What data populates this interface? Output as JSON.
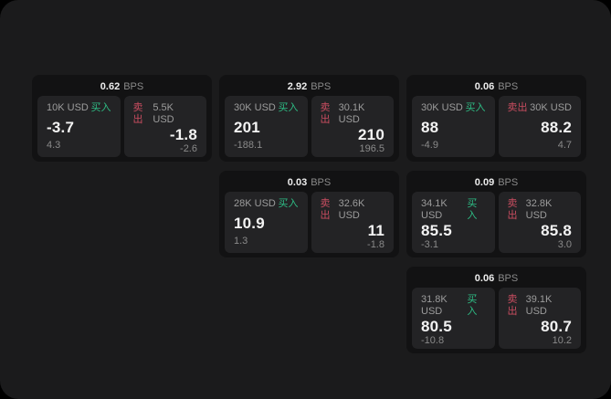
{
  "labels": {
    "buy": "买入",
    "sell": "卖出",
    "bps_unit": "BPS"
  },
  "colors": {
    "buy": "#2ebd85",
    "sell": "#c94d60",
    "panel_bg": "#1b1b1c",
    "card_bg": "#121213",
    "tile_bg": "#232325"
  },
  "cards": [
    {
      "row": 1,
      "col": 1,
      "bps": "0.62",
      "buy": {
        "size": "10K USD",
        "price": "-3.7",
        "change": "4.3"
      },
      "sell": {
        "size": "5.5K USD",
        "price": "-1.8",
        "change": "-2.6"
      }
    },
    {
      "row": 1,
      "col": 2,
      "bps": "2.92",
      "buy": {
        "size": "30K USD",
        "price": "201",
        "change": "-188.1"
      },
      "sell": {
        "size": "30.1K USD",
        "price": "210",
        "change": "196.5"
      }
    },
    {
      "row": 1,
      "col": 3,
      "bps": "0.06",
      "buy": {
        "size": "30K USD",
        "price": "88",
        "change": "-4.9"
      },
      "sell": {
        "size": "30K USD",
        "price": "88.2",
        "change": "4.7"
      }
    },
    {
      "row": 2,
      "col": 2,
      "bps": "0.03",
      "buy": {
        "size": "28K USD",
        "price": "10.9",
        "change": "1.3"
      },
      "sell": {
        "size": "32.6K USD",
        "price": "11",
        "change": "-1.8"
      }
    },
    {
      "row": 2,
      "col": 3,
      "bps": "0.09",
      "buy": {
        "size": "34.1K USD",
        "price": "85.5",
        "change": "-3.1"
      },
      "sell": {
        "size": "32.8K USD",
        "price": "85.8",
        "change": "3.0"
      }
    },
    {
      "row": 3,
      "col": 3,
      "bps": "0.06",
      "buy": {
        "size": "31.8K USD",
        "price": "80.5",
        "change": "-10.8"
      },
      "sell": {
        "size": "39.1K USD",
        "price": "80.7",
        "change": "10.2"
      }
    }
  ]
}
